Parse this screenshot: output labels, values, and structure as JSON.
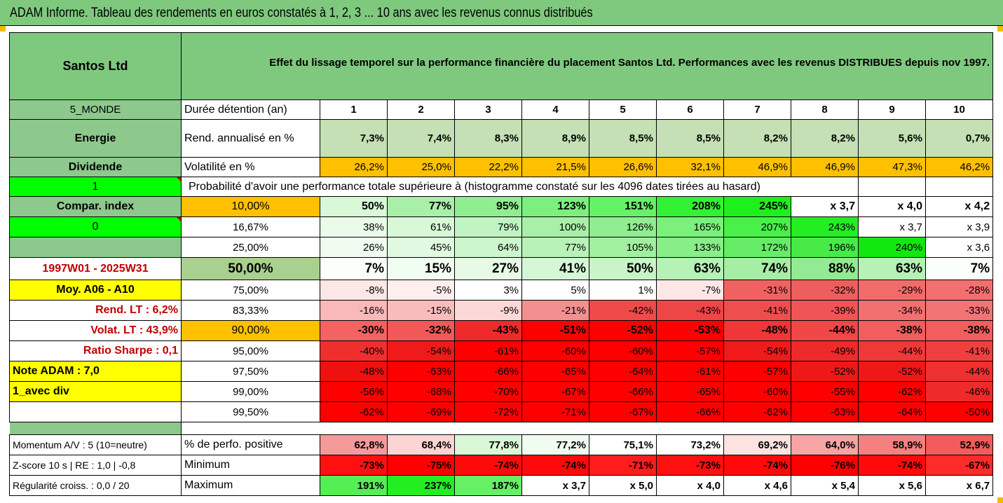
{
  "title": "ADAM Informe. Tableau des rendements en euros constatés à 1, 2, 3 ... 10 ans avec les revenus connus distribués",
  "header": {
    "company": "Santos Ltd",
    "description": "Effet du lissage temporel sur la performance financière du placement Santos Ltd. Performances avec les revenus DISTRIBUES depuis nov 1997."
  },
  "side": {
    "region": "5_MONDE",
    "sector": "Energie",
    "type": "Dividende",
    "flag1": "1",
    "compar": "Compar. index",
    "flag0": "0",
    "period": "1997W01 - 2025W31",
    "moy": "Moy. A06 - A10",
    "rend_lt": "Rend. LT :   6,2%",
    "volat_lt": "Volat. LT :   43,9%",
    "sharpe": "Ratio Sharpe :   0,1",
    "note": "Note ADAM : 7,0",
    "div": "1_avec div"
  },
  "labels": {
    "duree": "Durée détention (an)",
    "rend": "Rend. annualisé en %",
    "volat": "Volatilité en %",
    "proba": "Probabilité d'avoir une performance totale supérieure à (histogramme constaté sur les 4096 dates tirées au hasard)",
    "pos": "% de perfo. positive",
    "min": "Minimum",
    "max": "Maximum"
  },
  "years": [
    "1",
    "2",
    "3",
    "4",
    "5",
    "6",
    "7",
    "8",
    "9",
    "10"
  ],
  "rend": [
    "7,3%",
    "7,4%",
    "8,3%",
    "8,9%",
    "8,5%",
    "8,5%",
    "8,2%",
    "8,2%",
    "5,6%",
    "0,7%"
  ],
  "volat": [
    "26,2%",
    "25,0%",
    "22,2%",
    "21,5%",
    "26,6%",
    "32,1%",
    "46,9%",
    "46,9%",
    "47,3%",
    "46,2%"
  ],
  "percentiles": [
    {
      "p": "10,00%",
      "v": [
        "50%",
        "77%",
        "95%",
        "123%",
        "151%",
        "208%",
        "245%",
        "x 3,7",
        "x 4,0",
        "x 4,2"
      ]
    },
    {
      "p": "16,67%",
      "v": [
        "38%",
        "61%",
        "79%",
        "100%",
        "126%",
        "165%",
        "207%",
        "243%",
        "x 3,7",
        "x 3,9"
      ]
    },
    {
      "p": "25,00%",
      "v": [
        "26%",
        "45%",
        "64%",
        "77%",
        "105%",
        "133%",
        "172%",
        "196%",
        "240%",
        "x 3,6"
      ]
    },
    {
      "p": "50,00%",
      "v": [
        "7%",
        "15%",
        "27%",
        "41%",
        "50%",
        "63%",
        "74%",
        "88%",
        "63%",
        "7%"
      ]
    },
    {
      "p": "75,00%",
      "v": [
        "-8%",
        "-5%",
        "3%",
        "5%",
        "1%",
        "-7%",
        "-31%",
        "-32%",
        "-29%",
        "-28%"
      ]
    },
    {
      "p": "83,33%",
      "v": [
        "-16%",
        "-15%",
        "-9%",
        "-21%",
        "-42%",
        "-43%",
        "-41%",
        "-39%",
        "-34%",
        "-33%"
      ]
    },
    {
      "p": "90,00%",
      "v": [
        "-30%",
        "-32%",
        "-43%",
        "-51%",
        "-52%",
        "-53%",
        "-48%",
        "-44%",
        "-38%",
        "-38%"
      ]
    },
    {
      "p": "95,00%",
      "v": [
        "-40%",
        "-54%",
        "-61%",
        "-60%",
        "-60%",
        "-57%",
        "-54%",
        "-49%",
        "-44%",
        "-41%"
      ]
    },
    {
      "p": "97,50%",
      "v": [
        "-48%",
        "-63%",
        "-66%",
        "-65%",
        "-64%",
        "-61%",
        "-57%",
        "-52%",
        "-52%",
        "-44%"
      ]
    },
    {
      "p": "99,00%",
      "v": [
        "-56%",
        "-68%",
        "-70%",
        "-67%",
        "-66%",
        "-65%",
        "-60%",
        "-55%",
        "-62%",
        "-46%"
      ]
    },
    {
      "p": "99,50%",
      "v": [
        "-62%",
        "-69%",
        "-72%",
        "-71%",
        "-67%",
        "-66%",
        "-62%",
        "-63%",
        "-64%",
        "-50%"
      ]
    }
  ],
  "bottom": {
    "momentum": "Momentum A/V : 5 (10=neutre)",
    "zscore": "Z-score 10 s  |  RE : 1,0  |  -0,8",
    "regul": "Régularité croiss. : 0,0 / 20",
    "pos": [
      "62,8%",
      "68,4%",
      "77,8%",
      "77,2%",
      "75,1%",
      "73,2%",
      "69,2%",
      "64,0%",
      "58,9%",
      "52,9%"
    ],
    "min": [
      "-73%",
      "-75%",
      "-74%",
      "-74%",
      "-71%",
      "-73%",
      "-74%",
      "-76%",
      "-74%",
      "-67%"
    ],
    "max": [
      "191%",
      "237%",
      "187%",
      "x 3,7",
      "x 5,0",
      "x 4,0",
      "x 4,6",
      "x 5,4",
      "x 5,6",
      "x 6,7"
    ]
  },
  "colors": {
    "header_green": "#7fc97f",
    "label_green": "#8dc98d",
    "bright_green": "#00ff00",
    "orange": "#ffc000",
    "yellow": "#ffff00",
    "red": "#ff0000",
    "period_red": "#c00000"
  },
  "cell_colors": {
    "rend": [
      "#c5e0b4",
      "#c5e0b4",
      "#c5e0b4",
      "#c5e0b4",
      "#c5e0b4",
      "#c5e0b4",
      "#c5e0b4",
      "#c5e0b4",
      "#c5e0b4",
      "#c5e0b4"
    ],
    "volat": [
      "#ffc000",
      "#ffc000",
      "#ffc000",
      "#ffc000",
      "#ffc000",
      "#ffc000",
      "#ffc000",
      "#ffc000",
      "#ffc000",
      "#ffc000"
    ],
    "pct": [
      [
        "#d8f8d8",
        "#a8f0a8",
        "#90ee90",
        "#7cf07c",
        "#66f266",
        "#33f133",
        "#1ef01e",
        "#ffffff",
        "#ffffff",
        "#ffffff"
      ],
      [
        "#eafbea",
        "#d8f8d8",
        "#c0f4c0",
        "#a8f0a8",
        "#90ee90",
        "#7cf07c",
        "#48f048",
        "#22ee22",
        "#ffffff",
        "#ffffff"
      ],
      [
        "#f0fcf0",
        "#e0f9e0",
        "#ccf6cc",
        "#b8f2b8",
        "#a0f0a0",
        "#88ee88",
        "#66ec66",
        "#48ea48",
        "#10e810",
        "#ffffff"
      ],
      [
        "#fafffa",
        "#f2fdf2",
        "#e6fae6",
        "#d6f7d6",
        "#c8f4c8",
        "#b6f1b6",
        "#a6eea6",
        "#92eb92",
        "#b6f1b6",
        "#fafffa"
      ],
      [
        "#fde6e6",
        "#feeeee",
        "#ffffff",
        "#ffffff",
        "#ffffff",
        "#fce6e6",
        "#f06262",
        "#ef5e5e",
        "#f26b6b",
        "#f37070"
      ],
      [
        "#f9b9b9",
        "#f9bcbc",
        "#fdd8d8",
        "#f29090",
        "#ef4a4a",
        "#ee4646",
        "#ef4e4e",
        "#f05454",
        "#f27070",
        "#f27474"
      ],
      [
        "#f56262",
        "#f35858",
        "#ef2a2a",
        "#ff0000",
        "#ff0000",
        "#ff0000",
        "#f03636",
        "#ef4646",
        "#f25e5e",
        "#f25e5e"
      ],
      [
        "#ef2e2e",
        "#ef1a1a",
        "#ff0000",
        "#ff0000",
        "#ff0000",
        "#ff0000",
        "#ef1a1a",
        "#ef2a2a",
        "#ef3838",
        "#ef4040"
      ],
      [
        "#ef1010",
        "#ff0000",
        "#ff0000",
        "#ff0000",
        "#ff0000",
        "#ff0000",
        "#ff0000",
        "#ef1818",
        "#ef1818",
        "#ef3030"
      ],
      [
        "#ff0000",
        "#ff0000",
        "#ff0000",
        "#ff0000",
        "#ff0000",
        "#ff0000",
        "#ff0000",
        "#ff0000",
        "#ff0000",
        "#ef2a2a"
      ],
      [
        "#ff0000",
        "#ff0000",
        "#ff0000",
        "#ff0000",
        "#ff0000",
        "#ff0000",
        "#ff0000",
        "#ff0000",
        "#ff0000",
        "#ff0000"
      ]
    ],
    "pos": [
      "#f59a9a",
      "#fdd4d4",
      "#d8f8d8",
      "#f0fcf0",
      "#ffffff",
      "#ffffff",
      "#fde2e2",
      "#f7a4a4",
      "#f48080",
      "#f25c5c"
    ],
    "min": [
      "#ff1010",
      "#ff0000",
      "#ff0a0a",
      "#ff0a0a",
      "#ff1c1c",
      "#ff1010",
      "#ff0a0a",
      "#ff0000",
      "#ff0a0a",
      "#ff2a2a"
    ],
    "max": [
      "#55ee55",
      "#22ee22",
      "#66f066",
      "#ffffff",
      "#ffffff",
      "#ffffff",
      "#ffffff",
      "#ffffff",
      "#ffffff",
      "#ffffff"
    ]
  }
}
